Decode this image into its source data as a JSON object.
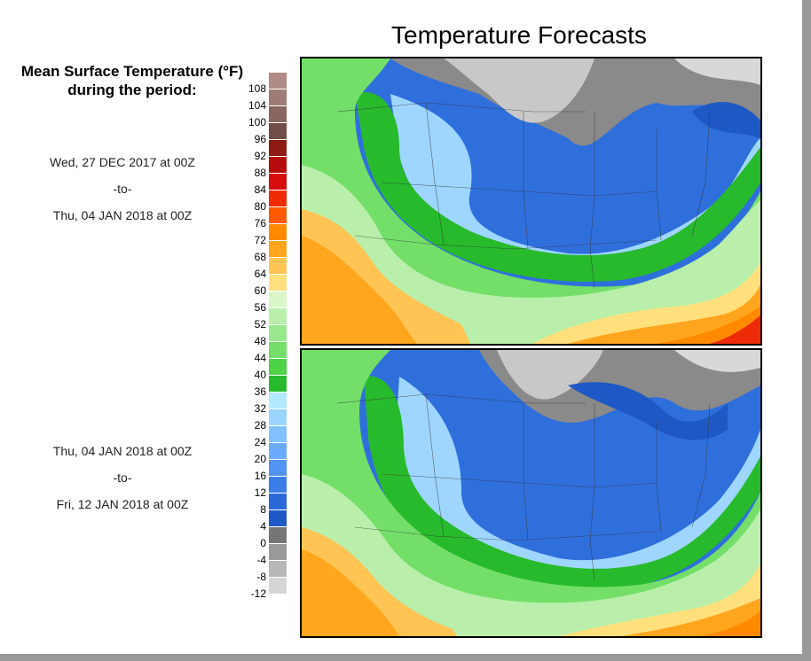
{
  "title": "Temperature Forecasts",
  "legend": {
    "title_line1": "Mean Surface Temperature (°F)",
    "title_line2": "during the period:",
    "unit": "°F",
    "labels": [
      "108",
      "104",
      "100",
      "96",
      "92",
      "88",
      "84",
      "80",
      "76",
      "72",
      "68",
      "64",
      "60",
      "56",
      "52",
      "48",
      "44",
      "40",
      "36",
      "32",
      "28",
      "24",
      "20",
      "16",
      "12",
      "8",
      "4",
      "0",
      "-4",
      "-8",
      "-12"
    ],
    "colors": [
      "#b08a84",
      "#9e7c76",
      "#8a6660",
      "#734e48",
      "#8e1a14",
      "#b50d0d",
      "#d60d0d",
      "#ee2b06",
      "#ff5a00",
      "#ff8a00",
      "#ffa51e",
      "#ffc453",
      "#ffe07d",
      "#d9f7c9",
      "#b9efaa",
      "#98e88d",
      "#73df69",
      "#4dd246",
      "#27ba2c",
      "#b2e9ff",
      "#99d5ff",
      "#82c1ff",
      "#6aabff",
      "#5294f4",
      "#3b7ee8",
      "#2a68d8",
      "#1e58c4",
      "#767676",
      "#999999",
      "#b8b8b8",
      "#d6d6d6"
    ],
    "top_color": "#e8c8c0",
    "bottom_color": "#eeeeee"
  },
  "periods": [
    {
      "start": "Wed, 27 DEC 2017 at 00Z",
      "sep": "-to-",
      "end": "Thu, 04 JAN 2018 at 00Z"
    },
    {
      "start": "Thu, 04 JAN 2018 at 00Z",
      "sep": "-to-",
      "end": "Fri, 12 JAN 2018 at 00Z"
    }
  ]
}
